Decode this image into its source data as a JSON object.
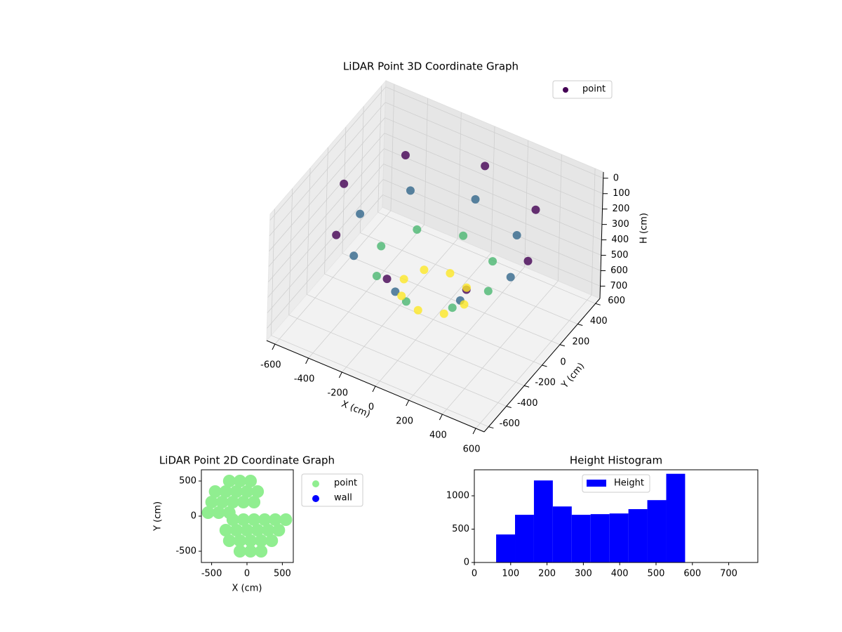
{
  "chart_data": [
    {
      "type": "scatter3d",
      "title": "LiDAR Point 3D Coordinate Graph",
      "x_label": "X (cm)",
      "y_label": "Y (cm)",
      "z_label": "H (cm)",
      "xlim": [
        -650,
        650
      ],
      "ylim": [
        -650,
        650
      ],
      "zlim": [
        780,
        -40
      ],
      "xticks": [
        -600,
        -400,
        -200,
        0,
        200,
        400,
        600
      ],
      "yticks": [
        -600,
        -400,
        -200,
        0,
        200,
        400,
        600
      ],
      "zticks": [
        0,
        100,
        200,
        300,
        400,
        500,
        600,
        700
      ],
      "grid": true,
      "legend": "upper right",
      "colormap": [
        "#440154",
        "#3b528b",
        "#21918c",
        "#5ec962",
        "#fde725"
      ],
      "series": [
        {
          "name": "point",
          "color": "#440154",
          "x": [
            550,
            389,
            0,
            -389,
            -550,
            -389,
            0,
            389,
            450,
            318,
            0,
            -318,
            -450,
            -318,
            0,
            318,
            320,
            226,
            0,
            -226,
            -320,
            -226,
            0,
            226,
            180,
            127,
            0,
            -127,
            -180,
            -127,
            0,
            127
          ],
          "y": [
            0,
            389,
            550,
            389,
            0,
            -389,
            -550,
            -389,
            0,
            318,
            450,
            318,
            0,
            -318,
            -450,
            -318,
            0,
            226,
            320,
            226,
            0,
            -226,
            -320,
            -226,
            0,
            127,
            180,
            127,
            0,
            -127,
            -180,
            -127
          ],
          "z": [
            150,
            150,
            150,
            150,
            150,
            150,
            150,
            150,
            300,
            300,
            300,
            300,
            300,
            300,
            300,
            300,
            450,
            450,
            450,
            450,
            450,
            450,
            450,
            450,
            600,
            600,
            600,
            600,
            600,
            600,
            600,
            600
          ]
        }
      ]
    },
    {
      "type": "scatter",
      "title": "LiDAR Point 2D Coordinate Graph",
      "x_label": "X (cm)",
      "y_label": "Y (cm)",
      "xlim": [
        -645,
        655
      ],
      "ylim": [
        -660,
        660
      ],
      "xticks": [
        -500,
        0,
        500
      ],
      "yticks": [
        -500,
        0,
        500
      ],
      "legend": "outside upper right",
      "series": [
        {
          "name": "point",
          "color": "#90ee90",
          "x": [
            -250,
            -100,
            50,
            -450,
            -300,
            -150,
            0,
            150,
            -500,
            -350,
            -200,
            -50,
            100,
            -550,
            -400,
            -250,
            -200,
            -50,
            100,
            250,
            400,
            550,
            -300,
            -150,
            0,
            150,
            300,
            450,
            -250,
            -100,
            50,
            200,
            350,
            -100,
            50,
            200
          ],
          "y": [
            500,
            500,
            500,
            350,
            350,
            350,
            350,
            350,
            200,
            200,
            200,
            200,
            200,
            50,
            50,
            50,
            -50,
            -50,
            -50,
            -50,
            -50,
            -50,
            -200,
            -200,
            -200,
            -200,
            -200,
            -200,
            -350,
            -350,
            -350,
            -350,
            -350,
            -500,
            -500,
            -500
          ]
        },
        {
          "name": "wall",
          "color": "#0000ff",
          "x": [],
          "y": []
        }
      ]
    },
    {
      "type": "histogram",
      "title": "Height Histogram",
      "label": "Height",
      "color": "#0000ff",
      "bins": [
        60,
        112,
        164,
        216,
        268,
        320,
        372,
        424,
        476,
        528,
        580
      ],
      "counts": [
        420,
        715,
        1230,
        840,
        715,
        725,
        735,
        800,
        935,
        1330
      ],
      "xlim": [
        0,
        780
      ],
      "ylim": [
        0,
        1390
      ],
      "xticks": [
        0,
        100,
        200,
        300,
        400,
        500,
        600,
        700
      ],
      "yticks": [
        0,
        500,
        1000
      ],
      "legend": "upper center"
    }
  ]
}
